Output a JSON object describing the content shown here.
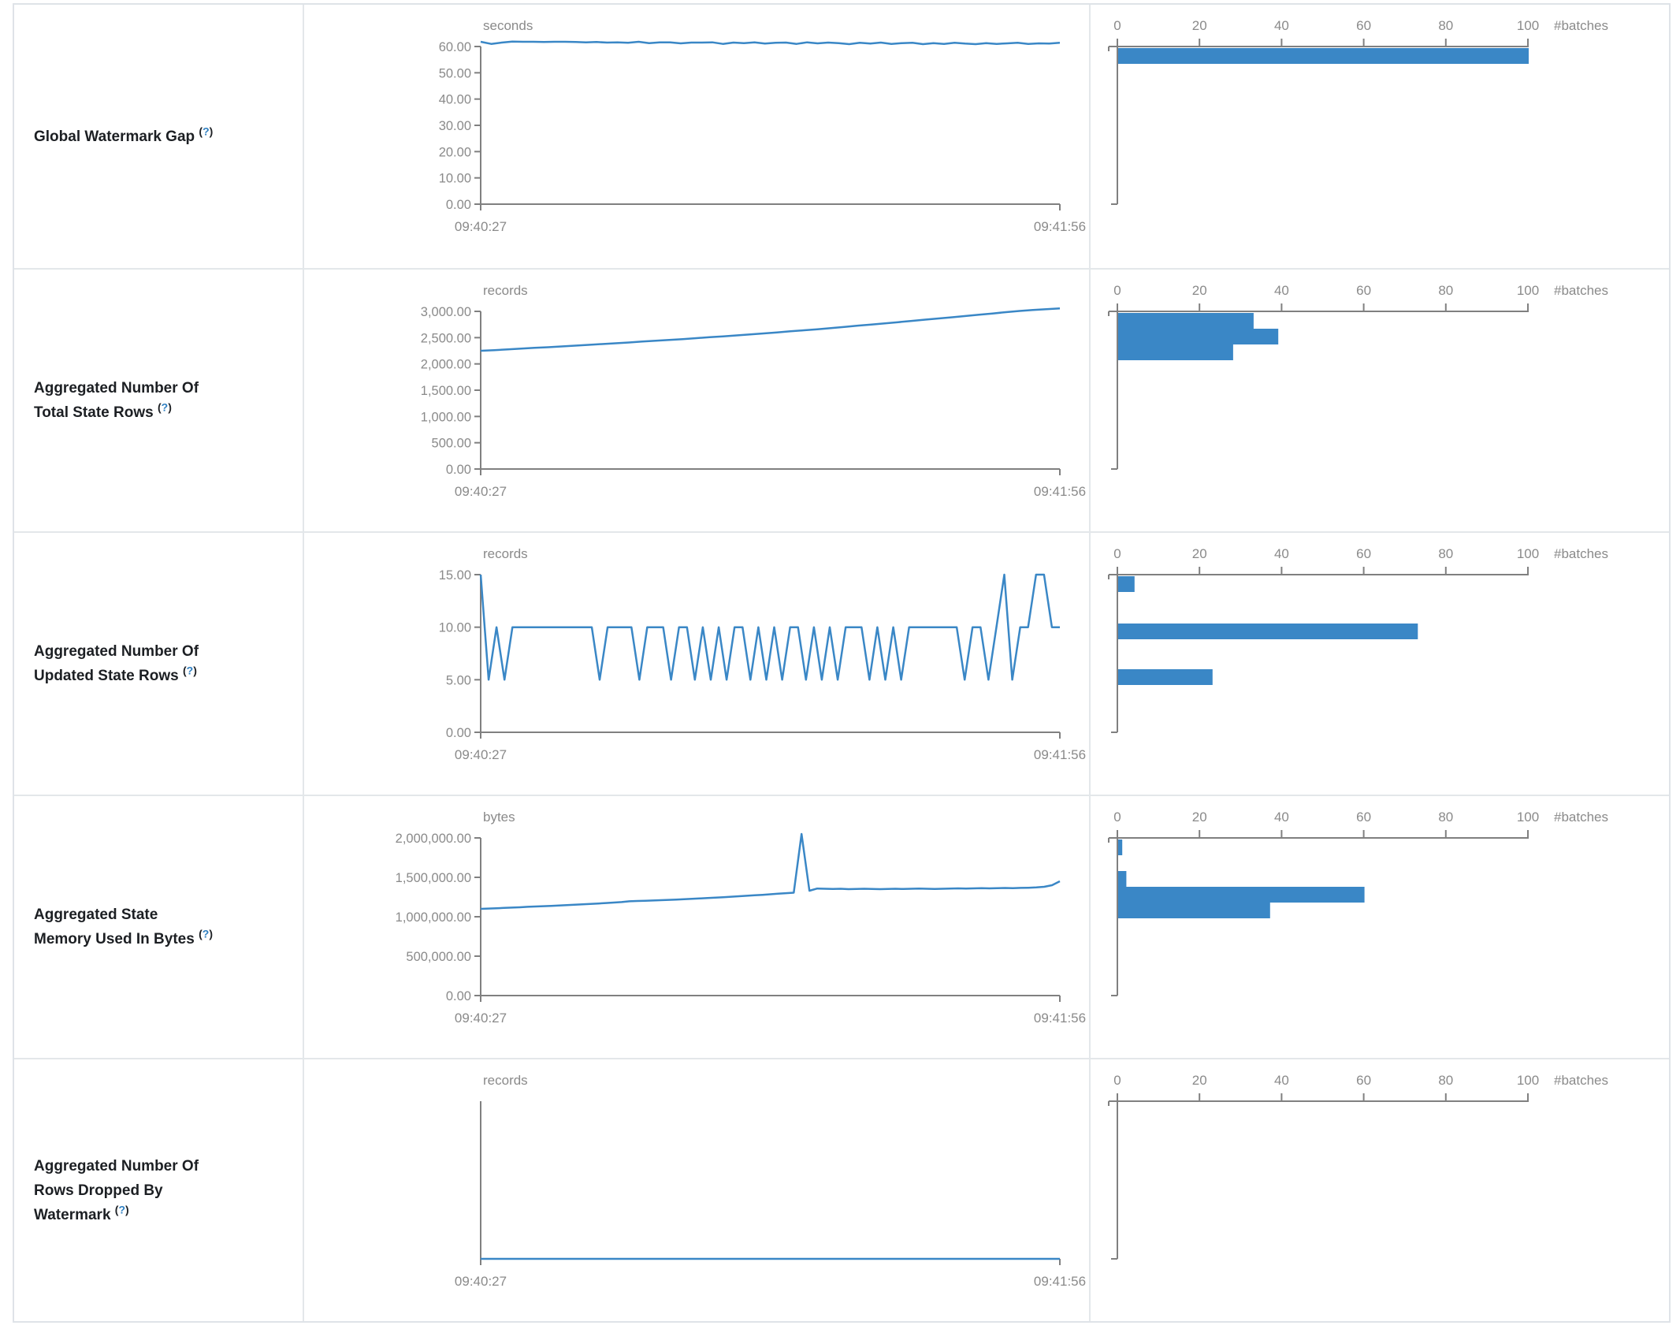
{
  "colors": {
    "series_blue": "#3a87c6",
    "axis_gray": "#808080",
    "tick_text_gray": "#8a8a8a",
    "label_dark": "#1c1f23",
    "help_blue": "#2e7fc1",
    "border_gray": "#e3e7ea"
  },
  "help_link": {
    "open": "(",
    "q": "?",
    "close": ")"
  },
  "time_axis": {
    "start_label": "09:40:27",
    "end_label": "09:41:56"
  },
  "histogram_axis": {
    "tick_labels": [
      "0",
      "20",
      "40",
      "60",
      "80",
      "100"
    ],
    "tick_values": [
      0,
      20,
      40,
      60,
      80,
      100
    ],
    "unit_label": "#batches",
    "max": 100
  },
  "chart_data": [
    {
      "label": "Global Watermark Gap",
      "type": "line",
      "unit": "seconds",
      "x_range": [
        "09:40:27",
        "09:41:56"
      ],
      "y_ticks": [
        {
          "label": "60.00",
          "v": 60
        },
        {
          "label": "50.00",
          "v": 50
        },
        {
          "label": "40.00",
          "v": 40
        },
        {
          "label": "30.00",
          "v": 30
        },
        {
          "label": "20.00",
          "v": 20
        },
        {
          "label": "10.00",
          "v": 10
        },
        {
          "label": "0.00",
          "v": 0
        }
      ],
      "y_max": 60,
      "values": [
        61.8,
        61.0,
        61.5,
        61.9,
        61.8,
        61.8,
        61.7,
        61.8,
        61.8,
        61.7,
        61.6,
        61.7,
        61.5,
        61.6,
        61.4,
        61.8,
        61.3,
        61.6,
        61.6,
        61.2,
        61.5,
        61.5,
        61.6,
        61.0,
        61.5,
        61.3,
        61.6,
        61.1,
        61.4,
        61.5,
        61.0,
        61.6,
        61.2,
        61.5,
        61.3,
        60.9,
        61.4,
        61.1,
        61.5,
        61.0,
        61.3,
        61.4,
        60.9,
        61.3,
        61.0,
        61.4,
        61.1,
        60.9,
        61.3,
        61.0,
        61.2,
        61.4,
        61.0,
        61.2,
        61.1,
        61.4
      ],
      "histogram": {
        "type": "bar",
        "unit": "#batches",
        "bars": [
          {
            "count": 100,
            "y": 55
          }
        ]
      }
    },
    {
      "label": "Aggregated Number Of Total State Rows",
      "type": "line",
      "unit": "records",
      "x_range": [
        "09:40:27",
        "09:41:56"
      ],
      "y_ticks": [
        {
          "label": "3,000.00",
          "v": 3000
        },
        {
          "label": "2,500.00",
          "v": 2500
        },
        {
          "label": "2,000.00",
          "v": 2000
        },
        {
          "label": "1,500.00",
          "v": 1500
        },
        {
          "label": "1,000.00",
          "v": 1000
        },
        {
          "label": "500.00",
          "v": 500
        },
        {
          "label": "0.00",
          "v": 0
        }
      ],
      "y_max": 3000,
      "values": [
        2250,
        2262,
        2275,
        2290,
        2305,
        2318,
        2332,
        2348,
        2362,
        2378,
        2392,
        2408,
        2425,
        2440,
        2456,
        2472,
        2490,
        2508,
        2525,
        2542,
        2560,
        2580,
        2600,
        2620,
        2640,
        2660,
        2682,
        2705,
        2728,
        2750,
        2772,
        2795,
        2818,
        2842,
        2865,
        2888,
        2912,
        2936,
        2960,
        2985,
        3008,
        3025,
        3040,
        3055
      ],
      "histogram": {
        "type": "bar",
        "unit": "#batches",
        "bars": [
          {
            "count": 33,
            "y": 55
          },
          {
            "count": 39,
            "y": 75
          },
          {
            "count": 28,
            "y": 95
          }
        ]
      }
    },
    {
      "label": "Aggregated Number Of Updated State Rows",
      "type": "line",
      "unit": "records",
      "x_range": [
        "09:40:27",
        "09:41:56"
      ],
      "y_ticks": [
        {
          "label": "15.00",
          "v": 15
        },
        {
          "label": "10.00",
          "v": 10
        },
        {
          "label": "5.00",
          "v": 5
        },
        {
          "label": "0.00",
          "v": 0
        }
      ],
      "y_max": 15,
      "values": [
        15,
        5,
        10,
        5,
        10,
        10,
        10,
        10,
        10,
        10,
        10,
        10,
        10,
        10,
        10,
        5,
        10,
        10,
        10,
        10,
        5,
        10,
        10,
        10,
        5,
        10,
        10,
        5,
        10,
        5,
        10,
        5,
        10,
        10,
        5,
        10,
        5,
        10,
        5,
        10,
        10,
        5,
        10,
        5,
        10,
        5,
        10,
        10,
        10,
        5,
        10,
        5,
        10,
        5,
        10,
        10,
        10,
        10,
        10,
        10,
        10,
        5,
        10,
        10,
        5,
        10,
        15,
        5,
        10,
        10,
        15,
        15,
        10,
        10
      ],
      "histogram": {
        "type": "bar",
        "unit": "#batches",
        "bars": [
          {
            "count": 4,
            "y": 55
          },
          {
            "count": 73,
            "y": 115
          },
          {
            "count": 23,
            "y": 173
          }
        ]
      }
    },
    {
      "label": "Aggregated State Memory Used In Bytes",
      "type": "line",
      "unit": "bytes",
      "x_range": [
        "09:40:27",
        "09:41:56"
      ],
      "y_ticks": [
        {
          "label": "2,000,000.00",
          "v": 2000000
        },
        {
          "label": "1,500,000.00",
          "v": 1500000
        },
        {
          "label": "1,000,000.00",
          "v": 1000000
        },
        {
          "label": "500,000.00",
          "v": 500000
        },
        {
          "label": "0.00",
          "v": 0
        }
      ],
      "y_max": 2000000,
      "values": [
        1100000,
        1104000,
        1108000,
        1112000,
        1116000,
        1120000,
        1126000,
        1130000,
        1134000,
        1138000,
        1143000,
        1148000,
        1153000,
        1158000,
        1163000,
        1168000,
        1174000,
        1180000,
        1186000,
        1196000,
        1200000,
        1203000,
        1206000,
        1210000,
        1214000,
        1218000,
        1222000,
        1227000,
        1232000,
        1237000,
        1242000,
        1248000,
        1254000,
        1260000,
        1266000,
        1272000,
        1278000,
        1285000,
        1292000,
        1299000,
        1305000,
        2050000,
        1330000,
        1358000,
        1355000,
        1352000,
        1355000,
        1350000,
        1352000,
        1355000,
        1352000,
        1350000,
        1353000,
        1355000,
        1352000,
        1355000,
        1358000,
        1355000,
        1352000,
        1355000,
        1358000,
        1360000,
        1358000,
        1360000,
        1362000,
        1360000,
        1363000,
        1365000,
        1363000,
        1366000,
        1368000,
        1372000,
        1380000,
        1400000,
        1450000
      ],
      "histogram": {
        "type": "bar",
        "unit": "#batches",
        "bars": [
          {
            "count": 1,
            "y": 55
          },
          {
            "count": 2,
            "y": 95
          },
          {
            "count": 60,
            "y": 115
          },
          {
            "count": 37,
            "y": 135
          }
        ]
      }
    },
    {
      "label": "Aggregated Number Of Rows Dropped By Watermark",
      "type": "line",
      "unit": "records",
      "x_range": [
        "09:40:27",
        "09:41:56"
      ],
      "y_ticks": [],
      "y_max": null,
      "values": [
        0,
        0
      ],
      "histogram": {
        "type": "bar",
        "unit": "#batches",
        "bars": []
      }
    }
  ]
}
